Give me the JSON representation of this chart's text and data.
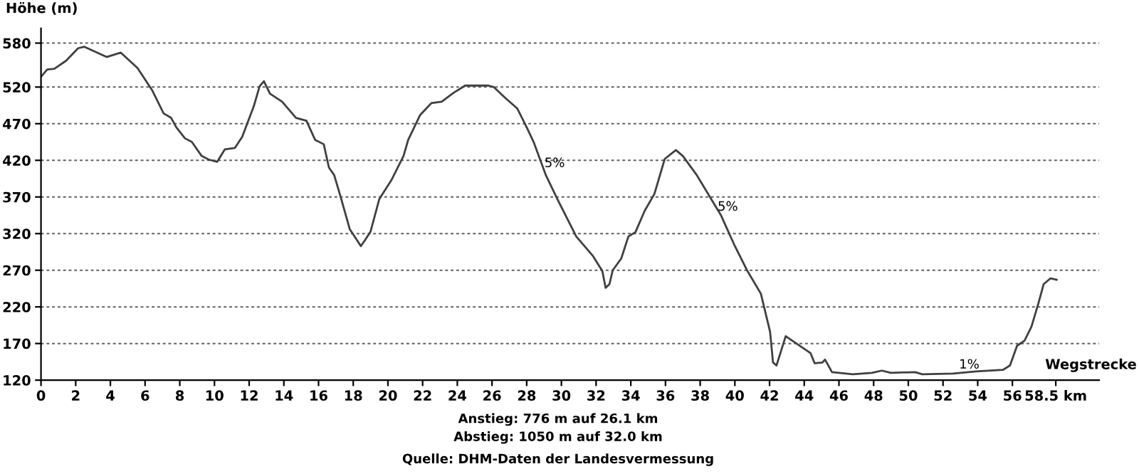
{
  "chart_data": {
    "type": "line",
    "xlabel": "Wegstrecke",
    "ylabel": "Höhe (m)",
    "series": [
      {
        "color": "#404040",
        "x": [
          0,
          0.36,
          0.77,
          1.45,
          2.14,
          2.5,
          3.78,
          4.6,
          5.56,
          6.4,
          7.07,
          7.5,
          7.8,
          8.3,
          8.7,
          9.26,
          9.67,
          10.16,
          10.6,
          11.18,
          11.6,
          12.27,
          12.6,
          12.85,
          13.2,
          13.9,
          14.7,
          15.3,
          15.8,
          16.3,
          16.6,
          16.9,
          17.3,
          17.8,
          18.44,
          18.65,
          19.0,
          19.5,
          20.2,
          20.9,
          21.17,
          21.86,
          22.5,
          23.1,
          23.77,
          24.45,
          25.8,
          26.1,
          26.77,
          27.45,
          28.0,
          28.4,
          29.1,
          29.77,
          30.86,
          31.8,
          32.36,
          32.55,
          32.77,
          32.96,
          33.45,
          33.86,
          34.27,
          34.8,
          35.36,
          35.96,
          36.6,
          37.0,
          37.8,
          39.2,
          40.0,
          40.7,
          41.5,
          42.03,
          42.2,
          42.4,
          42.93,
          44.36,
          44.6,
          45.04,
          45.2,
          45.6,
          46.8,
          47.9,
          48.47,
          49.0,
          50.4,
          50.8,
          52.57,
          53.9,
          55.45,
          55.86,
          56.27,
          56.7,
          57.1,
          57.5,
          57.8,
          58.2,
          58.55
        ],
        "values": [
          534,
          544,
          545,
          556,
          573,
          575,
          561,
          567,
          546,
          516,
          484,
          478,
          465,
          450,
          445,
          426,
          421,
          418,
          435,
          437,
          452,
          494,
          521,
          528,
          511,
          500,
          478,
          474,
          448,
          442,
          410,
          400,
          368,
          326,
          303,
          310,
          323,
          367,
          393,
          426,
          448,
          482,
          498,
          500,
          512,
          522,
          522,
          520,
          505,
          491,
          465,
          445,
          400,
          367,
          316,
          290,
          269,
          246,
          251,
          270,
          286,
          316,
          322,
          351,
          374,
          422,
          434,
          426,
          400,
          345,
          303,
          270,
          238,
          186,
          144,
          140,
          180,
          157,
          143,
          144,
          148,
          131,
          128,
          130,
          133,
          130,
          131,
          128,
          129,
          132,
          134,
          140,
          167,
          174,
          193,
          225,
          251,
          259,
          257
        ]
      }
    ],
    "xlim": [
      0,
      61
    ],
    "ylim": [
      120,
      600
    ],
    "xticks": [
      0,
      2,
      4,
      6,
      8,
      10,
      12,
      14,
      16,
      18,
      20,
      22,
      24,
      26,
      28,
      30,
      32,
      34,
      36,
      38,
      40,
      42,
      44,
      46,
      48,
      50,
      52,
      54,
      56,
      {
        "value": 58.5,
        "label": "58.5 km"
      }
    ],
    "yticks": [
      120,
      170,
      220,
      270,
      320,
      370,
      420,
      470,
      520,
      580
    ],
    "grid": "y",
    "line_style": "solid",
    "marker": "none",
    "annotations": [
      "5%",
      "5%",
      "1%",
      "Anstieg: 776 m auf 26.1 km",
      "Abstieg: 1050 m auf 32.0 km",
      "Quelle: DHM-Daten der Landesvermessung"
    ]
  }
}
